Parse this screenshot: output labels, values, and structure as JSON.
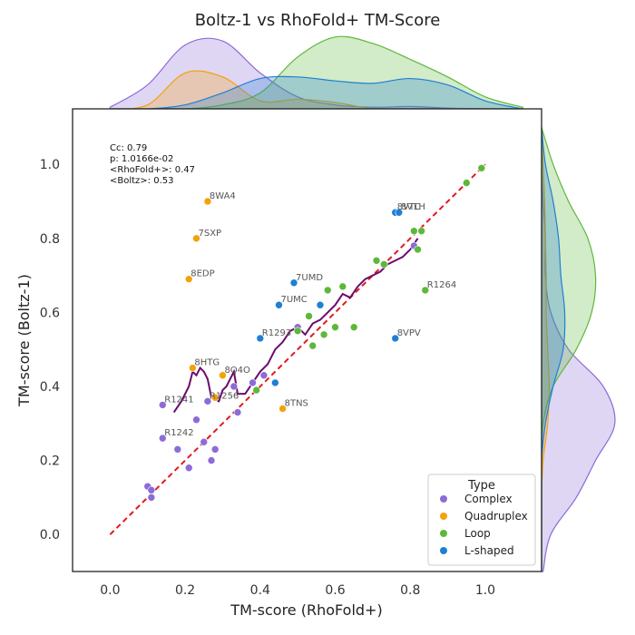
{
  "chart_data": {
    "type": "scatter",
    "title": "Boltz-1 vs RhoFold+ TM-Score",
    "xlabel": "TM-score (RhoFold+)",
    "ylabel": "TM-score (Boltz-1)",
    "xlim": [
      -0.1,
      1.15
    ],
    "ylim": [
      -0.1,
      1.15
    ],
    "xticks": [
      "0.0",
      "0.2",
      "0.4",
      "0.6",
      "0.8",
      "1.0"
    ],
    "yticks": [
      "0.0",
      "0.2",
      "0.4",
      "0.6",
      "0.8",
      "1.0"
    ],
    "grid": false,
    "stats": [
      "Cc: 0.79",
      "p: 1.0166e-02",
      "<RhoFold+>: 0.47",
      "<Boltz>: 0.53"
    ],
    "reference_line": {
      "style": "dashed",
      "color": "#e3191c",
      "x": [
        0.0,
        1.0
      ],
      "y": [
        0.0,
        1.0
      ]
    },
    "legend": {
      "title": "Type",
      "position": "bottom-right",
      "entries": [
        {
          "label": "Complex",
          "color": "#8c6bd8"
        },
        {
          "label": "Quadruplex",
          "color": "#f4a20a"
        },
        {
          "label": "Loop",
          "color": "#5db83a"
        },
        {
          "label": "L-shaped",
          "color": "#1f7fd4"
        }
      ]
    },
    "series": [
      {
        "name": "Complex",
        "color": "#8c6bd8",
        "points": [
          {
            "x": 0.1,
            "y": 0.13
          },
          {
            "x": 0.11,
            "y": 0.12
          },
          {
            "x": 0.11,
            "y": 0.1
          },
          {
            "x": 0.14,
            "y": 0.35,
            "label": "R1241"
          },
          {
            "x": 0.14,
            "y": 0.26,
            "label": "R1242"
          },
          {
            "x": 0.18,
            "y": 0.23
          },
          {
            "x": 0.21,
            "y": 0.18
          },
          {
            "x": 0.23,
            "y": 0.31
          },
          {
            "x": 0.25,
            "y": 0.25
          },
          {
            "x": 0.26,
            "y": 0.36,
            "label": "R1256"
          },
          {
            "x": 0.27,
            "y": 0.2
          },
          {
            "x": 0.28,
            "y": 0.23
          },
          {
            "x": 0.33,
            "y": 0.4
          },
          {
            "x": 0.34,
            "y": 0.33
          },
          {
            "x": 0.38,
            "y": 0.41
          },
          {
            "x": 0.41,
            "y": 0.43
          },
          {
            "x": 0.5,
            "y": 0.56
          },
          {
            "x": 0.81,
            "y": 0.78
          }
        ]
      },
      {
        "name": "Quadruplex",
        "color": "#f4a20a",
        "points": [
          {
            "x": 0.22,
            "y": 0.45,
            "label": "8HTG"
          },
          {
            "x": 0.21,
            "y": 0.69,
            "label": "8EDP"
          },
          {
            "x": 0.23,
            "y": 0.8,
            "label": "7SXP"
          },
          {
            "x": 0.26,
            "y": 0.9,
            "label": "8WA4"
          },
          {
            "x": 0.28,
            "y": 0.37
          },
          {
            "x": 0.3,
            "y": 0.43,
            "label": "8Q4O"
          },
          {
            "x": 0.46,
            "y": 0.34,
            "label": "8TNS"
          }
        ]
      },
      {
        "name": "Loop",
        "color": "#5db83a",
        "points": [
          {
            "x": 0.39,
            "y": 0.39
          },
          {
            "x": 0.5,
            "y": 0.55
          },
          {
            "x": 0.53,
            "y": 0.59
          },
          {
            "x": 0.54,
            "y": 0.51
          },
          {
            "x": 0.57,
            "y": 0.54
          },
          {
            "x": 0.58,
            "y": 0.66
          },
          {
            "x": 0.6,
            "y": 0.56
          },
          {
            "x": 0.62,
            "y": 0.67
          },
          {
            "x": 0.65,
            "y": 0.56
          },
          {
            "x": 0.71,
            "y": 0.74
          },
          {
            "x": 0.73,
            "y": 0.73
          },
          {
            "x": 0.81,
            "y": 0.82
          },
          {
            "x": 0.82,
            "y": 0.77
          },
          {
            "x": 0.83,
            "y": 0.82
          },
          {
            "x": 0.84,
            "y": 0.66,
            "label": "R1264"
          },
          {
            "x": 0.95,
            "y": 0.95
          },
          {
            "x": 0.99,
            "y": 0.99
          }
        ]
      },
      {
        "name": "L-shaped",
        "color": "#1f7fd4",
        "points": [
          {
            "x": 0.4,
            "y": 0.53,
            "label": "R1293"
          },
          {
            "x": 0.44,
            "y": 0.41
          },
          {
            "x": 0.45,
            "y": 0.62,
            "label": "7UMC"
          },
          {
            "x": 0.49,
            "y": 0.68,
            "label": "7UMD"
          },
          {
            "x": 0.56,
            "y": 0.62
          },
          {
            "x": 0.76,
            "y": 0.87,
            "label": "8VTC"
          },
          {
            "x": 0.77,
            "y": 0.87,
            "label": "8V1H"
          },
          {
            "x": 0.76,
            "y": 0.53,
            "label": "8VPV"
          }
        ]
      }
    ],
    "trend_line": {
      "color": "#6a0a6e",
      "x": [
        0.17,
        0.19,
        0.21,
        0.22,
        0.23,
        0.24,
        0.25,
        0.26,
        0.27,
        0.29,
        0.3,
        0.31,
        0.32,
        0.33,
        0.34,
        0.36,
        0.38,
        0.4,
        0.42,
        0.44,
        0.46,
        0.48,
        0.5,
        0.52,
        0.54,
        0.56,
        0.58,
        0.6,
        0.62,
        0.64,
        0.66,
        0.68,
        0.7,
        0.72,
        0.74,
        0.76,
        0.78,
        0.8,
        0.82
      ],
      "y": [
        0.33,
        0.36,
        0.4,
        0.44,
        0.43,
        0.45,
        0.44,
        0.42,
        0.37,
        0.36,
        0.39,
        0.4,
        0.42,
        0.44,
        0.38,
        0.38,
        0.41,
        0.44,
        0.46,
        0.5,
        0.52,
        0.55,
        0.56,
        0.54,
        0.57,
        0.58,
        0.6,
        0.62,
        0.65,
        0.64,
        0.67,
        0.69,
        0.7,
        0.71,
        0.73,
        0.74,
        0.75,
        0.77,
        0.8
      ]
    },
    "marginals": {
      "top": {
        "x": [
          0.0,
          0.1,
          0.2,
          0.3,
          0.4,
          0.5,
          0.6,
          0.7,
          0.8,
          0.9,
          1.0,
          1.1
        ],
        "series": [
          {
            "name": "Complex",
            "color": "#8c6bd8",
            "density": [
              0.02,
              0.3,
              0.8,
              0.85,
              0.45,
              0.15,
              0.05,
              0.02,
              0.03,
              0.01,
              0.0,
              0.0
            ]
          },
          {
            "name": "Quadruplex",
            "color": "#f4a20a",
            "density": [
              0.0,
              0.05,
              0.45,
              0.4,
              0.1,
              0.12,
              0.08,
              0.0,
              0.0,
              0.0,
              0.0,
              0.0
            ]
          },
          {
            "name": "Loop",
            "color": "#5db83a",
            "density": [
              0.0,
              0.0,
              0.0,
              0.05,
              0.2,
              0.65,
              0.9,
              0.82,
              0.62,
              0.4,
              0.15,
              0.02
            ]
          },
          {
            "name": "L-shaped",
            "color": "#1f7fd4",
            "density": [
              0.0,
              0.0,
              0.05,
              0.2,
              0.38,
              0.4,
              0.35,
              0.32,
              0.38,
              0.3,
              0.1,
              0.0
            ]
          }
        ]
      },
      "right": {
        "y": [
          -0.1,
          0.0,
          0.1,
          0.2,
          0.3,
          0.4,
          0.5,
          0.6,
          0.7,
          0.8,
          0.9,
          1.0,
          1.1
        ],
        "series": [
          {
            "name": "Complex",
            "color": "#8c6bd8",
            "density": [
              0.02,
              0.12,
              0.45,
              0.7,
              0.95,
              0.8,
              0.35,
              0.12,
              0.05,
              0.05,
              0.02,
              0.0,
              0.0
            ]
          },
          {
            "name": "Quadruplex",
            "color": "#f4a20a",
            "density": [
              0.0,
              0.0,
              0.0,
              0.02,
              0.08,
              0.1,
              0.08,
              0.06,
              0.06,
              0.05,
              0.04,
              0.02,
              0.0
            ]
          },
          {
            "name": "Loop",
            "color": "#5db83a",
            "density": [
              0.0,
              0.0,
              0.0,
              0.0,
              0.02,
              0.15,
              0.45,
              0.65,
              0.7,
              0.6,
              0.35,
              0.15,
              0.0
            ]
          },
          {
            "name": "L-shaped",
            "color": "#1f7fd4",
            "density": [
              0.0,
              0.0,
              0.0,
              0.0,
              0.05,
              0.15,
              0.28,
              0.3,
              0.25,
              0.22,
              0.15,
              0.05,
              0.0
            ]
          }
        ]
      }
    }
  }
}
